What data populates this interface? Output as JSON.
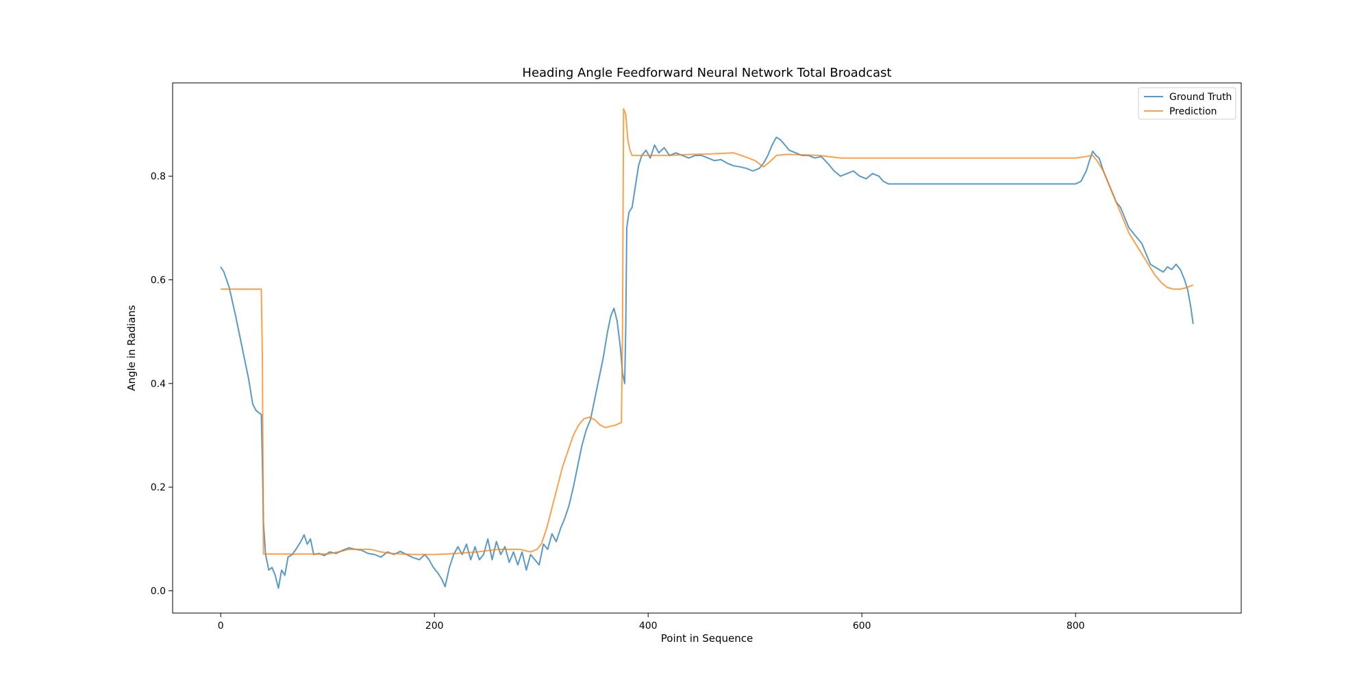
{
  "chart_data": {
    "type": "line",
    "title": "Heading Angle Feedforward Neural Network Total Broadcast",
    "xlabel": "Point in Sequence",
    "ylabel": "Angle in Radians",
    "xlim": [
      -45,
      955
    ],
    "ylim": [
      -0.043,
      0.98
    ],
    "x_ticks": [
      0,
      200,
      400,
      600,
      800
    ],
    "y_ticks": [
      0.0,
      0.2,
      0.4,
      0.6,
      0.8
    ],
    "x_tick_labels": [
      "0",
      "200",
      "400",
      "600",
      "800"
    ],
    "y_tick_labels": [
      "0.0",
      "0.2",
      "0.4",
      "0.6",
      "0.8"
    ],
    "grid": false,
    "legend_position": "top-right",
    "series": [
      {
        "name": "Ground Truth",
        "color": "#1f77b4",
        "points": [
          [
            0,
            0.625
          ],
          [
            3,
            0.615
          ],
          [
            8,
            0.585
          ],
          [
            14,
            0.53
          ],
          [
            20,
            0.47
          ],
          [
            26,
            0.41
          ],
          [
            30,
            0.36
          ],
          [
            33,
            0.348
          ],
          [
            36,
            0.343
          ],
          [
            38,
            0.34
          ],
          [
            39,
            0.25
          ],
          [
            40,
            0.13
          ],
          [
            42,
            0.07
          ],
          [
            45,
            0.04
          ],
          [
            48,
            0.045
          ],
          [
            51,
            0.03
          ],
          [
            54,
            0.005
          ],
          [
            57,
            0.04
          ],
          [
            60,
            0.03
          ],
          [
            63,
            0.065
          ],
          [
            67,
            0.07
          ],
          [
            71,
            0.082
          ],
          [
            75,
            0.095
          ],
          [
            78,
            0.108
          ],
          [
            81,
            0.09
          ],
          [
            84,
            0.1
          ],
          [
            87,
            0.07
          ],
          [
            92,
            0.072
          ],
          [
            97,
            0.068
          ],
          [
            102,
            0.075
          ],
          [
            108,
            0.072
          ],
          [
            114,
            0.078
          ],
          [
            120,
            0.083
          ],
          [
            126,
            0.08
          ],
          [
            132,
            0.078
          ],
          [
            138,
            0.072
          ],
          [
            144,
            0.07
          ],
          [
            150,
            0.065
          ],
          [
            156,
            0.075
          ],
          [
            162,
            0.07
          ],
          [
            168,
            0.076
          ],
          [
            174,
            0.07
          ],
          [
            180,
            0.064
          ],
          [
            186,
            0.06
          ],
          [
            191,
            0.07
          ],
          [
            195,
            0.06
          ],
          [
            199,
            0.045
          ],
          [
            203,
            0.035
          ],
          [
            207,
            0.022
          ],
          [
            210,
            0.008
          ],
          [
            214,
            0.045
          ],
          [
            218,
            0.07
          ],
          [
            222,
            0.085
          ],
          [
            226,
            0.07
          ],
          [
            230,
            0.09
          ],
          [
            234,
            0.06
          ],
          [
            238,
            0.085
          ],
          [
            242,
            0.06
          ],
          [
            246,
            0.07
          ],
          [
            250,
            0.1
          ],
          [
            254,
            0.06
          ],
          [
            258,
            0.095
          ],
          [
            262,
            0.07
          ],
          [
            266,
            0.085
          ],
          [
            270,
            0.055
          ],
          [
            274,
            0.075
          ],
          [
            278,
            0.05
          ],
          [
            282,
            0.075
          ],
          [
            286,
            0.04
          ],
          [
            290,
            0.07
          ],
          [
            294,
            0.06
          ],
          [
            298,
            0.05
          ],
          [
            302,
            0.09
          ],
          [
            306,
            0.08
          ],
          [
            310,
            0.11
          ],
          [
            314,
            0.095
          ],
          [
            318,
            0.12
          ],
          [
            322,
            0.14
          ],
          [
            326,
            0.165
          ],
          [
            330,
            0.2
          ],
          [
            334,
            0.24
          ],
          [
            338,
            0.28
          ],
          [
            342,
            0.31
          ],
          [
            346,
            0.33
          ],
          [
            350,
            0.37
          ],
          [
            354,
            0.41
          ],
          [
            358,
            0.45
          ],
          [
            362,
            0.5
          ],
          [
            365,
            0.53
          ],
          [
            368,
            0.545
          ],
          [
            371,
            0.52
          ],
          [
            374,
            0.47
          ],
          [
            376,
            0.42
          ],
          [
            378,
            0.4
          ],
          [
            379,
            0.5
          ],
          [
            380,
            0.7
          ],
          [
            382,
            0.73
          ],
          [
            385,
            0.74
          ],
          [
            388,
            0.78
          ],
          [
            391,
            0.82
          ],
          [
            394,
            0.84
          ],
          [
            398,
            0.85
          ],
          [
            402,
            0.835
          ],
          [
            406,
            0.86
          ],
          [
            410,
            0.845
          ],
          [
            415,
            0.855
          ],
          [
            420,
            0.84
          ],
          [
            426,
            0.845
          ],
          [
            432,
            0.84
          ],
          [
            438,
            0.835
          ],
          [
            444,
            0.84
          ],
          [
            450,
            0.84
          ],
          [
            456,
            0.835
          ],
          [
            462,
            0.83
          ],
          [
            468,
            0.832
          ],
          [
            474,
            0.825
          ],
          [
            480,
            0.82
          ],
          [
            486,
            0.818
          ],
          [
            492,
            0.815
          ],
          [
            498,
            0.81
          ],
          [
            504,
            0.815
          ],
          [
            508,
            0.825
          ],
          [
            512,
            0.84
          ],
          [
            516,
            0.86
          ],
          [
            520,
            0.875
          ],
          [
            524,
            0.87
          ],
          [
            528,
            0.86
          ],
          [
            532,
            0.85
          ],
          [
            538,
            0.845
          ],
          [
            544,
            0.84
          ],
          [
            550,
            0.84
          ],
          [
            556,
            0.835
          ],
          [
            562,
            0.838
          ],
          [
            568,
            0.825
          ],
          [
            574,
            0.81
          ],
          [
            580,
            0.8
          ],
          [
            586,
            0.805
          ],
          [
            592,
            0.81
          ],
          [
            598,
            0.8
          ],
          [
            604,
            0.795
          ],
          [
            610,
            0.805
          ],
          [
            616,
            0.8
          ],
          [
            620,
            0.79
          ],
          [
            625,
            0.785
          ],
          [
            630,
            0.785
          ],
          [
            660,
            0.785
          ],
          [
            700,
            0.785
          ],
          [
            740,
            0.785
          ],
          [
            780,
            0.785
          ],
          [
            800,
            0.785
          ],
          [
            805,
            0.79
          ],
          [
            810,
            0.81
          ],
          [
            813,
            0.83
          ],
          [
            816,
            0.848
          ],
          [
            819,
            0.84
          ],
          [
            822,
            0.835
          ],
          [
            826,
            0.81
          ],
          [
            830,
            0.79
          ],
          [
            834,
            0.77
          ],
          [
            838,
            0.75
          ],
          [
            842,
            0.74
          ],
          [
            846,
            0.72
          ],
          [
            850,
            0.7
          ],
          [
            854,
            0.69
          ],
          [
            858,
            0.68
          ],
          [
            862,
            0.67
          ],
          [
            866,
            0.65
          ],
          [
            870,
            0.63
          ],
          [
            874,
            0.625
          ],
          [
            878,
            0.62
          ],
          [
            882,
            0.615
          ],
          [
            886,
            0.625
          ],
          [
            890,
            0.62
          ],
          [
            894,
            0.63
          ],
          [
            898,
            0.62
          ],
          [
            902,
            0.6
          ],
          [
            905,
            0.58
          ],
          [
            908,
            0.545
          ],
          [
            910,
            0.515
          ]
        ]
      },
      {
        "name": "Prediction",
        "color": "#ff7f0e",
        "points": [
          [
            0,
            0.582
          ],
          [
            38,
            0.582
          ],
          [
            39,
            0.45
          ],
          [
            40,
            0.071
          ],
          [
            100,
            0.071
          ],
          [
            110,
            0.075
          ],
          [
            120,
            0.08
          ],
          [
            140,
            0.08
          ],
          [
            150,
            0.075
          ],
          [
            160,
            0.072
          ],
          [
            180,
            0.07
          ],
          [
            200,
            0.07
          ],
          [
            220,
            0.072
          ],
          [
            240,
            0.075
          ],
          [
            260,
            0.08
          ],
          [
            280,
            0.08
          ],
          [
            290,
            0.075
          ],
          [
            296,
            0.08
          ],
          [
            300,
            0.09
          ],
          [
            305,
            0.12
          ],
          [
            310,
            0.16
          ],
          [
            315,
            0.2
          ],
          [
            320,
            0.24
          ],
          [
            325,
            0.27
          ],
          [
            330,
            0.3
          ],
          [
            335,
            0.32
          ],
          [
            340,
            0.332
          ],
          [
            345,
            0.335
          ],
          [
            350,
            0.33
          ],
          [
            355,
            0.32
          ],
          [
            360,
            0.315
          ],
          [
            370,
            0.32
          ],
          [
            375,
            0.325
          ],
          [
            376,
            0.5
          ],
          [
            377,
            0.93
          ],
          [
            379,
            0.92
          ],
          [
            381,
            0.87
          ],
          [
            383,
            0.85
          ],
          [
            385,
            0.84
          ],
          [
            420,
            0.84
          ],
          [
            440,
            0.842
          ],
          [
            460,
            0.843
          ],
          [
            480,
            0.845
          ],
          [
            490,
            0.838
          ],
          [
            500,
            0.83
          ],
          [
            508,
            0.818
          ],
          [
            514,
            0.828
          ],
          [
            520,
            0.84
          ],
          [
            530,
            0.842
          ],
          [
            560,
            0.84
          ],
          [
            580,
            0.835
          ],
          [
            620,
            0.835
          ],
          [
            700,
            0.835
          ],
          [
            800,
            0.835
          ],
          [
            810,
            0.838
          ],
          [
            816,
            0.84
          ],
          [
            820,
            0.83
          ],
          [
            826,
            0.81
          ],
          [
            832,
            0.78
          ],
          [
            838,
            0.75
          ],
          [
            844,
            0.72
          ],
          [
            850,
            0.69
          ],
          [
            856,
            0.67
          ],
          [
            862,
            0.65
          ],
          [
            868,
            0.63
          ],
          [
            874,
            0.61
          ],
          [
            880,
            0.595
          ],
          [
            886,
            0.585
          ],
          [
            892,
            0.582
          ],
          [
            898,
            0.582
          ],
          [
            904,
            0.585
          ],
          [
            910,
            0.59
          ]
        ]
      }
    ]
  }
}
